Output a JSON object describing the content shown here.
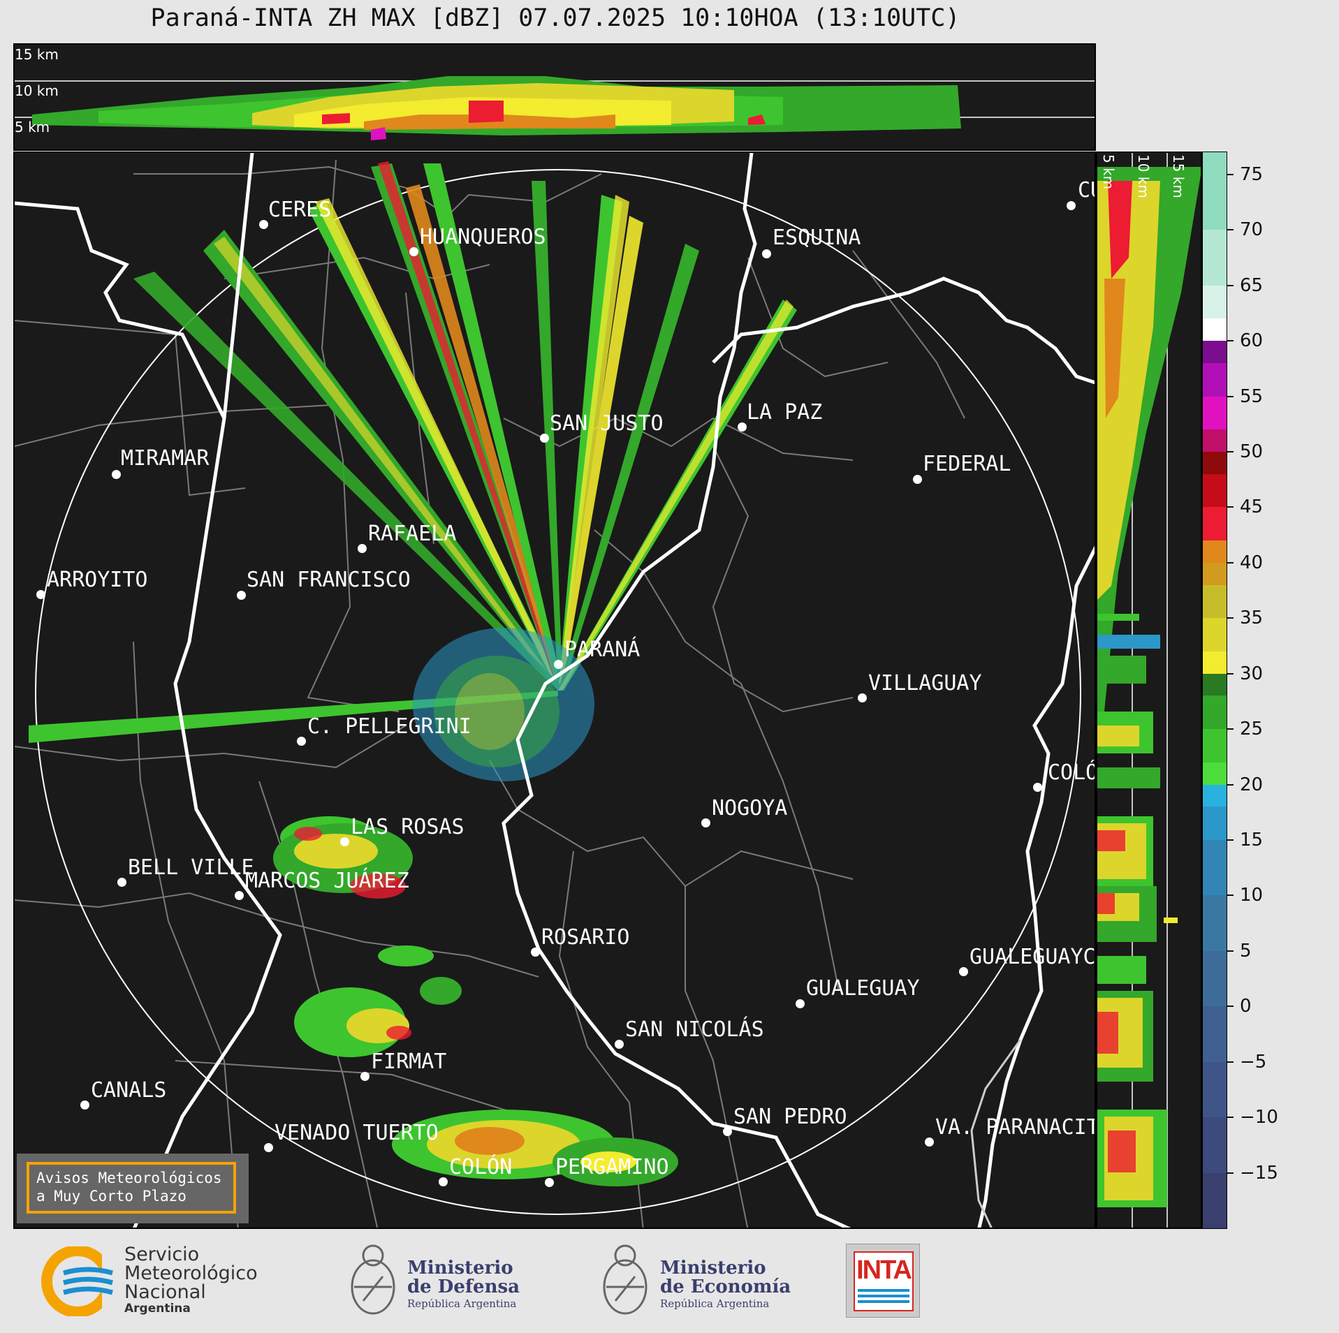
{
  "title": "Paraná-INTA ZH MAX [dBZ] 07.07.2025 10:10HOA (13:10UTC)",
  "top_cross_section": {
    "labels": [
      "15 km",
      "10 km",
      "5 km"
    ]
  },
  "side_cross_section": {
    "labels": [
      "5 km",
      "10 km",
      "15 km"
    ]
  },
  "colorbar": {
    "unit": "dBZ",
    "ticks": [
      "75",
      "70",
      "65",
      "60",
      "55",
      "50",
      "45",
      "40",
      "35",
      "30",
      "25",
      "20",
      "15",
      "10",
      "5",
      "0",
      "−5",
      "−10",
      "−15"
    ],
    "segments": [
      {
        "min": -20,
        "max": -15,
        "color": "#3a3f6e"
      },
      {
        "min": -15,
        "max": -10,
        "color": "#3d4a7d"
      },
      {
        "min": -10,
        "max": -5,
        "color": "#3f5587"
      },
      {
        "min": -5,
        "max": 0,
        "color": "#3f6090"
      },
      {
        "min": 0,
        "max": 5,
        "color": "#3d6c99"
      },
      {
        "min": 5,
        "max": 10,
        "color": "#3a78a3"
      },
      {
        "min": 10,
        "max": 15,
        "color": "#3285b4"
      },
      {
        "min": 15,
        "max": 18,
        "color": "#2b98c9"
      },
      {
        "min": 18,
        "max": 20,
        "color": "#29b2df"
      },
      {
        "min": 20,
        "max": 22,
        "color": "#4ddd3b"
      },
      {
        "min": 22,
        "max": 25,
        "color": "#3ec42f"
      },
      {
        "min": 25,
        "max": 28,
        "color": "#33a82a"
      },
      {
        "min": 28,
        "max": 30,
        "color": "#297a22"
      },
      {
        "min": 30,
        "max": 32,
        "color": "#f3ec2f"
      },
      {
        "min": 32,
        "max": 35,
        "color": "#dcd52c"
      },
      {
        "min": 35,
        "max": 38,
        "color": "#c7bd2b"
      },
      {
        "min": 38,
        "max": 40,
        "color": "#d29a1f"
      },
      {
        "min": 40,
        "max": 42,
        "color": "#e0881c"
      },
      {
        "min": 42,
        "max": 45,
        "color": "#ec1c32"
      },
      {
        "min": 45,
        "max": 48,
        "color": "#c50c18"
      },
      {
        "min": 48,
        "max": 50,
        "color": "#8f0a0a"
      },
      {
        "min": 50,
        "max": 52,
        "color": "#c0106a"
      },
      {
        "min": 52,
        "max": 55,
        "color": "#e012c0"
      },
      {
        "min": 55,
        "max": 58,
        "color": "#b10fb6"
      },
      {
        "min": 58,
        "max": 60,
        "color": "#7b0d8f"
      },
      {
        "min": 60,
        "max": 62,
        "color": "#ffffff"
      },
      {
        "min": 62,
        "max": 65,
        "color": "#d8f2e8"
      },
      {
        "min": 65,
        "max": 70,
        "color": "#b5e8d3"
      },
      {
        "min": 70,
        "max": 77,
        "color": "#8fdcbe"
      }
    ]
  },
  "cities": [
    {
      "name": "CERES"
    },
    {
      "name": "HUANQUEROS"
    },
    {
      "name": "ESQUINA"
    },
    {
      "name": "CU"
    },
    {
      "name": "SAN JUSTO"
    },
    {
      "name": "LA PAZ"
    },
    {
      "name": "MIRAMAR"
    },
    {
      "name": "FEDERAL"
    },
    {
      "name": "RAFAELA"
    },
    {
      "name": "ARROYITO"
    },
    {
      "name": "SAN FRANCISCO"
    },
    {
      "name": "PARANÁ"
    },
    {
      "name": "VILLAGUAY"
    },
    {
      "name": "C. PELLEGRINI"
    },
    {
      "name": "COLÓ"
    },
    {
      "name": "NOGOYA"
    },
    {
      "name": "LAS ROSAS"
    },
    {
      "name": "BELL VILLE"
    },
    {
      "name": "MARCOS JUÁREZ"
    },
    {
      "name": "ROSARIO"
    },
    {
      "name": "GUALEGUAYC"
    },
    {
      "name": "GUALEGUAY"
    },
    {
      "name": "SAN NICOLÁS"
    },
    {
      "name": "FIRMAT"
    },
    {
      "name": "CANALS"
    },
    {
      "name": "SAN PEDRO"
    },
    {
      "name": "VA. PARANACIT"
    },
    {
      "name": "VENADO TUERTO"
    },
    {
      "name": "COLÓN"
    },
    {
      "name": "PERGAMINO"
    }
  ],
  "avisos": {
    "line1": "Avisos Meteorológicos",
    "line2": "a Muy Corto Plazo"
  },
  "logos": {
    "smn": {
      "line1": "Servicio",
      "line2": "Meteorológico",
      "line3": "Nacional",
      "line4": "Argentina"
    },
    "defensa": {
      "line1": "Ministerio",
      "line2": "de Defensa",
      "line3": "República Argentina"
    },
    "economia": {
      "line1": "Ministerio",
      "line2": "de Economía",
      "line3": "República Argentina"
    },
    "inta": {
      "text": "INTA"
    }
  },
  "colors": {
    "background": "#e6e6e6",
    "map_background": "#1a1a1a",
    "smn_yellow": "#f5a300",
    "smn_blue": "#1a8fd0",
    "inta_red": "#d7261e",
    "ministry_blue": "#3a3f6e"
  }
}
